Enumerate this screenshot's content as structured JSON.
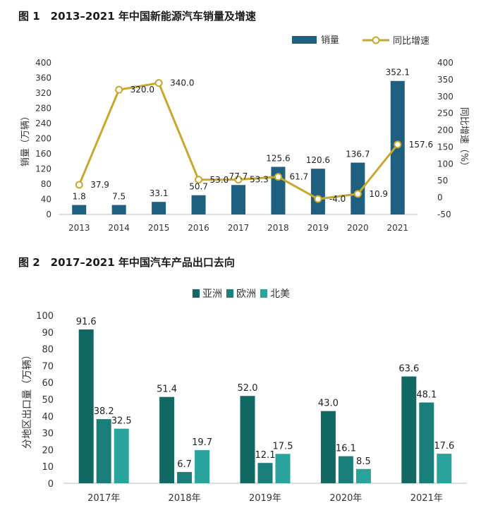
{
  "figure1": {
    "title": "图 1　2013–2021 年中国新能源汽车销量及增速",
    "chart_data": {
      "type": "bar+line",
      "categories": [
        "2013",
        "2014",
        "2015",
        "2016",
        "2017",
        "2018",
        "2019",
        "2020",
        "2021"
      ],
      "series": [
        {
          "name": "销量",
          "type": "bar",
          "axis": "left",
          "color": "#1f5f7f",
          "values": [
            1.8,
            7.5,
            33.1,
            50.7,
            77.7,
            125.6,
            120.6,
            136.7,
            352.1
          ],
          "labels": [
            "1.8",
            "7.5",
            "33.1",
            "50.7",
            "77.7",
            "125.6",
            "120.6",
            "136.7",
            "352.1"
          ]
        },
        {
          "name": "同比增速",
          "type": "line",
          "axis": "right",
          "color": "#c8a82c",
          "values": [
            37.9,
            320.0,
            340.0,
            53.0,
            53.3,
            61.7,
            -4.0,
            10.9,
            157.6
          ],
          "labels": [
            "37.9",
            "320.0",
            "340.0",
            "53.0",
            "53.3",
            "61.7",
            "-4.0",
            "10.9",
            "157.6"
          ]
        }
      ],
      "ylabel_left": "销量（万辆）",
      "ylabel_right": "同比增速（%）",
      "ylim_left": [
        0,
        400
      ],
      "yticks_left": [
        "0",
        "40",
        "80",
        "120",
        "160",
        "200",
        "240",
        "280",
        "320",
        "360",
        "400"
      ],
      "ylim_right": [
        -50,
        400
      ],
      "yticks_right": [
        "-50",
        "0",
        "50",
        "100",
        "150",
        "200",
        "250",
        "300",
        "350",
        "400"
      ],
      "legend": "top-right",
      "grid": false
    }
  },
  "figure2": {
    "title": "图 2　2017–2021 年中国汽车产品出口去向",
    "chart_data": {
      "type": "bar",
      "categories": [
        "2017年",
        "2018年",
        "2019年",
        "2020年",
        "2021年"
      ],
      "series": [
        {
          "name": "亚洲",
          "color": "#126862",
          "values": [
            91.6,
            51.4,
            52.0,
            43.0,
            63.6
          ],
          "labels": [
            "91.6",
            "51.4",
            "52.0",
            "43.0",
            "63.6"
          ]
        },
        {
          "name": "欧洲",
          "color": "#1a7f7a",
          "values": [
            38.2,
            6.7,
            12.1,
            16.1,
            48.1
          ],
          "labels": [
            "38.2",
            "6.7",
            "12.1",
            "16.1",
            "48.1"
          ]
        },
        {
          "name": "北美",
          "color": "#2aa39d",
          "values": [
            32.5,
            19.7,
            17.5,
            8.5,
            17.6
          ],
          "labels": [
            "32.5",
            "19.7",
            "17.5",
            "8.5",
            "17.6"
          ]
        }
      ],
      "ylabel": "分地区出口量（万辆）",
      "ylim": [
        0,
        100
      ],
      "yticks": [
        "0",
        "10",
        "20",
        "30",
        "40",
        "50",
        "60",
        "70",
        "80",
        "90",
        "100"
      ],
      "legend": "top-center",
      "grid": false
    }
  }
}
